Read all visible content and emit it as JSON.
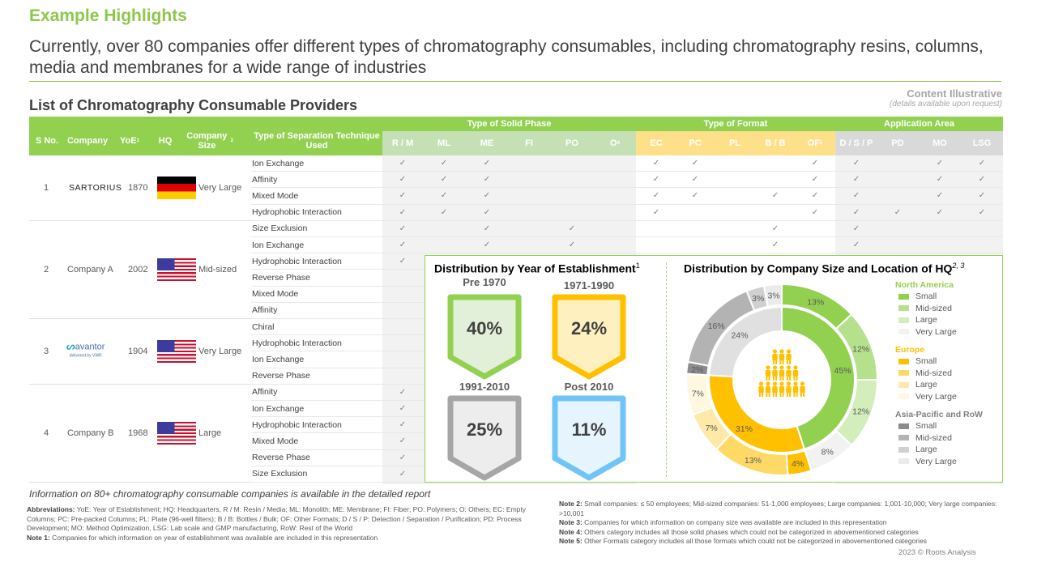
{
  "header": {
    "title": "Example Highlights",
    "subtitle": "Currently, over 80 companies offer different types of chromatography consumables, including chromatography resins, columns, media and membranes for a wide range of industries",
    "content_illustrative": "Content Illustrative",
    "content_note": "(details available upon request)"
  },
  "table": {
    "title": "List of Chromatography Consumable Providers",
    "fixed_headers": [
      "S No.",
      "Company",
      "YoE",
      "HQ",
      "Company Size",
      "Type of Separation Technique Used"
    ],
    "fixed_header_sups": {
      "YoE": "1",
      "Company Size": "2"
    },
    "groups": [
      {
        "label": "Type of Solid Phase",
        "columns": [
          "R / M",
          "ML",
          "ME",
          "FI",
          "PO",
          "O"
        ],
        "sup_last": "4"
      },
      {
        "label": "Type of Format",
        "columns": [
          "EC",
          "PC",
          "PL",
          "B / B",
          "OF"
        ],
        "sup_last": "5"
      },
      {
        "label": "Application Area",
        "columns": [
          "D / S / P",
          "PD",
          "MO",
          "LSG"
        ]
      }
    ],
    "check_glyph": "✓",
    "companies": [
      {
        "sno": "1",
        "name": "SARTORIUS",
        "logo": "sartorius-logo",
        "yoe": "1870",
        "hq": "Germany",
        "size": "Very Large",
        "techniques": [
          {
            "name": "Ion Exchange",
            "checks": [
              "R / M",
              "ML",
              "ME",
              "EC",
              "PC",
              "OF",
              "D / S / P",
              "MO",
              "LSG"
            ]
          },
          {
            "name": "Affinity",
            "checks": [
              "R / M",
              "ML",
              "ME",
              "EC",
              "PC",
              "OF",
              "D / S / P",
              "MO",
              "LSG"
            ]
          },
          {
            "name": "Mixed Mode",
            "checks": [
              "R / M",
              "ML",
              "ME",
              "EC",
              "PC",
              "B / B",
              "OF",
              "D / S / P",
              "MO",
              "LSG"
            ]
          },
          {
            "name": "Hydrophobic Interaction",
            "checks": [
              "R / M",
              "ML",
              "ME",
              "EC",
              "OF",
              "D / S / P",
              "PD",
              "MO",
              "LSG"
            ]
          }
        ]
      },
      {
        "sno": "2",
        "name": "Company A",
        "logo": "",
        "yoe": "2002",
        "hq": "USA",
        "size": "Mid-sized",
        "techniques": [
          {
            "name": "Size Exclusion",
            "checks": [
              "R / M",
              "ME",
              "PO",
              "B / B",
              "D / S / P"
            ]
          },
          {
            "name": "Ion Exchange",
            "checks": [
              "R / M",
              "ME",
              "PO",
              "B / B",
              "D / S / P"
            ]
          },
          {
            "name": "Hydrophobic Interaction",
            "checks": [
              "R / M"
            ]
          },
          {
            "name": "Reverse Phase",
            "checks": []
          },
          {
            "name": "Mixed Mode",
            "checks": []
          },
          {
            "name": "Affinity",
            "checks": []
          }
        ]
      },
      {
        "sno": "3",
        "name": "avantor",
        "logo": "avantor-logo",
        "logo_sub": "delivered by VWR",
        "yoe": "1904",
        "hq": "USA",
        "size": "Very Large",
        "techniques": [
          {
            "name": "Chiral",
            "checks": []
          },
          {
            "name": "Hydrophobic Interaction",
            "checks": []
          },
          {
            "name": "Ion Exchange",
            "checks": []
          },
          {
            "name": "Reverse Phase",
            "checks": []
          }
        ]
      },
      {
        "sno": "4",
        "name": "Company B",
        "logo": "",
        "yoe": "1968",
        "hq": "USA",
        "size": "Large",
        "techniques": [
          {
            "name": "Affinity",
            "checks": [
              "R / M"
            ]
          },
          {
            "name": "Ion Exchange",
            "checks": [
              "R / M"
            ]
          },
          {
            "name": "Hydrophobic Interaction",
            "checks": [
              "R / M"
            ]
          },
          {
            "name": "Mixed Mode",
            "checks": [
              "R / M"
            ]
          },
          {
            "name": "Reverse Phase",
            "checks": [
              "R / M"
            ]
          },
          {
            "name": "Size Exclusion",
            "checks": [
              "R / M"
            ]
          }
        ]
      }
    ]
  },
  "chart_data": [
    {
      "type": "table",
      "title": "Distribution by Year of Establishment",
      "title_sup": "1",
      "categories": [
        "Pre 1970",
        "1971-1990",
        "1991-2010",
        "Post 2010"
      ],
      "values": [
        40,
        24,
        25,
        11
      ],
      "labels": [
        "40%",
        "24%",
        "25%",
        "11%"
      ],
      "colors": {
        "border": [
          "#92D050",
          "#FFC000",
          "#A6A6A6",
          "#70C4F8"
        ],
        "fill": [
          "#E2F0D9",
          "#FFF0C0",
          "#EDEDED",
          "#E6F4FD"
        ]
      }
    },
    {
      "type": "pie",
      "title": "Distribution by Company  Size and Location of HQ",
      "title_sup": "2, 3",
      "inner": {
        "categories": [
          "North America",
          "Europe",
          "Asia-Pacific and RoW"
        ],
        "values": [
          45,
          31,
          24
        ],
        "colors": [
          "#92D050",
          "#FFC000",
          "#E0E0E0"
        ]
      },
      "outer": {
        "categories": [
          "North America - Small",
          "North America - Mid-sized",
          "North America - Large",
          "North America - Very Large",
          "Europe - Small",
          "Europe - Mid-sized",
          "Europe - Large",
          "Europe - Very Large",
          "Asia-Pacific and RoW - Small",
          "Asia-Pacific and RoW - Mid-sized",
          "Asia-Pacific and RoW - Large",
          "Asia-Pacific and RoW - Very Large"
        ],
        "values": [
          13,
          12,
          12,
          8,
          4,
          13,
          7,
          7,
          2,
          16,
          3,
          3
        ],
        "colors": [
          "#92D050",
          "#B5E08C",
          "#D3EDBB",
          "#F2F2F2",
          "#FFC000",
          "#FFD966",
          "#FFE9A8",
          "#FFF7E0",
          "#8C8C8C",
          "#B3B3B3",
          "#D0D0D0",
          "#EBEBEB"
        ]
      },
      "legend": [
        {
          "group": "North America",
          "color": "#92D050",
          "items": [
            {
              "label": "Small",
              "color": "#92D050"
            },
            {
              "label": "Mid-sized",
              "color": "#B5E08C"
            },
            {
              "label": "Large",
              "color": "#D3EDBB"
            },
            {
              "label": "Very Large",
              "color": "#F2F2F2"
            }
          ]
        },
        {
          "group": "Europe",
          "color": "#FFC000",
          "items": [
            {
              "label": "Small",
              "color": "#FFC000"
            },
            {
              "label": "Mid-sized",
              "color": "#FFD966"
            },
            {
              "label": "Large",
              "color": "#FFE9A8"
            },
            {
              "label": "Very Large",
              "color": "#FFF7E0"
            }
          ]
        },
        {
          "group": "Asia-Pacific and RoW",
          "color": "#808080",
          "items": [
            {
              "label": "Small",
              "color": "#8C8C8C"
            },
            {
              "label": "Mid-sized",
              "color": "#B3B3B3"
            },
            {
              "label": "Large",
              "color": "#D0D0D0"
            },
            {
              "label": "Very Large",
              "color": "#EBEBEB"
            }
          ]
        }
      ],
      "center_icon": "people-pyramid-icon"
    }
  ],
  "footer": {
    "info": "Information on 80+ chromatography consumable companies is available in the detailed report",
    "abbr_label": "Abbreviations:",
    "abbr_text": " YoE: Year of Establishment; HQ: Headquarters, R / M: Resin / Media; ML: Monolith; ME: Membrane; FI: Fiber; PO: Polymers; O: Others; EC: Empty Columns; PC: Pre-packed Columns; PL: Plate (96-well filters); B / B: Bottles / Bulk; OF: Other Formats; D / S / P: Detection / Separation / Purification; PD: Process Development; MO: Method Optimization, LSG: Lab scale and GMP manufacturing, RoW: Rest of the World",
    "notes": [
      {
        "label": "Note 1:",
        "text": " Companies for which information on year of establishment was available are included in this representation"
      },
      {
        "label": "Note 2:",
        "text": " Small companies: ≤ 50 employees; Mid-sized companies: 51-1,000 employees; Large companies: 1,001-10,000; Very large companies: >10,001"
      },
      {
        "label": "Note 3:",
        "text": " Companies for which information on company size was available are included in this representation"
      },
      {
        "label": "Note 4:",
        "text": " Others category includes all those solid phases which could not be categorized in abovementioned categories"
      },
      {
        "label": "Note 5:",
        "text": " Other Formats category includes all those formats which could not be categorized in abovementioned categories"
      }
    ],
    "copyright": "2023 © Roots Analysis"
  }
}
